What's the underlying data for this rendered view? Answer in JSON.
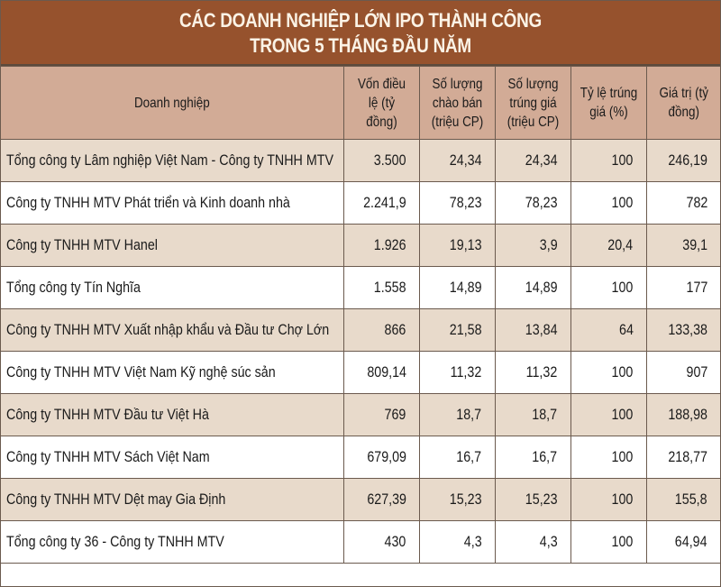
{
  "title": {
    "line1": "CÁC DOANH NGHIỆP LỚN IPO THÀNH CÔNG",
    "line2": "TRONG 5 THÁNG ĐẦU NĂM"
  },
  "colors": {
    "title_bg": "#96522d",
    "title_text": "#fbf3e6",
    "header_bg": "#d2ab96",
    "row_shaded": "#e8dacb",
    "row_plain": "#ffffff",
    "border": "#6b5a4e"
  },
  "table": {
    "headers": [
      "Doanh nghiệp",
      "Vốn điều lệ (tỷ đồng)",
      "Số lượng chào bán (triệu CP)",
      "Số lượng trúng giá (triệu CP)",
      "Tỷ lệ trúng giá (%)",
      "Giá trị (tỷ đồng)"
    ],
    "rows": [
      [
        "Tổng công ty Lâm nghiệp Việt Nam - Công ty TNHH MTV",
        "3.500",
        "24,34",
        "24,34",
        "100",
        "246,19"
      ],
      [
        "Công ty TNHH MTV Phát triển và Kinh doanh nhà",
        "2.241,9",
        "78,23",
        "78,23",
        "100",
        "782"
      ],
      [
        "Công ty TNHH MTV Hanel",
        "1.926",
        "19,13",
        "3,9",
        "20,4",
        "39,1"
      ],
      [
        "Tổng công ty Tín Nghĩa",
        "1.558",
        "14,89",
        "14,89",
        "100",
        "177"
      ],
      [
        "Công ty TNHH MTV Xuất nhập khẩu và Đầu tư Chợ Lớn",
        "866",
        "21,58",
        "13,84",
        "64",
        "133,38"
      ],
      [
        "Công ty TNHH MTV Việt Nam Kỹ nghệ súc sản",
        "809,14",
        "11,32",
        "11,32",
        "100",
        "907"
      ],
      [
        "Công ty TNHH MTV Đầu tư Việt Hà",
        "769",
        "18,7",
        "18,7",
        "100",
        "188,98"
      ],
      [
        "Công ty TNHH MTV Sách Việt Nam",
        "679,09",
        "16,7",
        "16,7",
        "100",
        "218,77"
      ],
      [
        "Công ty TNHH MTV Dệt may Gia Định",
        "627,39",
        "15,23",
        "15,23",
        "100",
        "155,8"
      ],
      [
        "Tổng công ty 36 - Công ty TNHH MTV",
        "430",
        "4,3",
        "4,3",
        "100",
        "64,94"
      ]
    ]
  }
}
